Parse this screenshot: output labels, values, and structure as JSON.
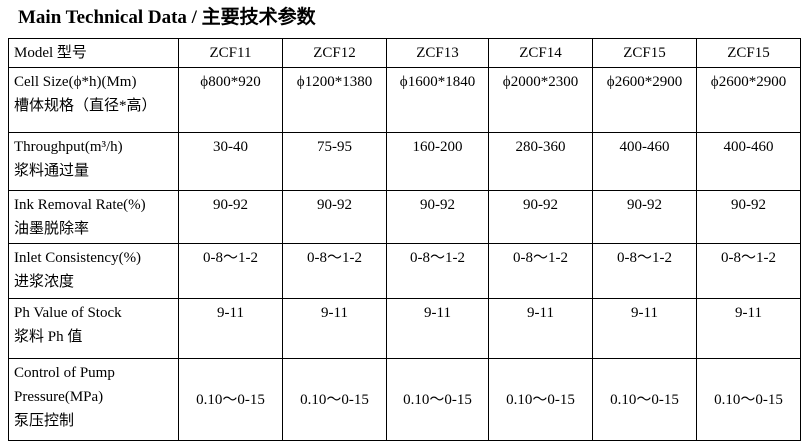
{
  "title": "Main Technical Data /  主要技术参数",
  "table": {
    "header": [
      "Model 型号",
      "ZCF11",
      "ZCF12",
      "ZCF13",
      "ZCF14",
      "ZCF15",
      "ZCF15"
    ],
    "rows": [
      {
        "label": [
          "Cell Size(ϕ*h)(Mm)",
          "槽体规格（直径*高）"
        ],
        "cells": [
          "ϕ800*920",
          "ϕ1200*1380",
          "ϕ1600*1840",
          "ϕ2000*2300",
          "ϕ2600*2900",
          "ϕ2600*2900"
        ]
      },
      {
        "label": [
          "Throughput(m³/h)",
          "浆料通过量"
        ],
        "cells": [
          "30-40",
          "75-95",
          "160-200",
          "280-360",
          "400-460",
          "400-460"
        ]
      },
      {
        "label": [
          "Ink Removal Rate(%)",
          "油墨脱除率"
        ],
        "cells": [
          "90-92",
          "90-92",
          "90-92",
          "90-92",
          "90-92",
          "90-92"
        ]
      },
      {
        "label": [
          "Inlet Consistency(%)",
          "进浆浓度"
        ],
        "cells": [
          "0-8～1-2",
          "0-8～1-2",
          "0-8～1-2",
          "0-8～1-2",
          "0-8～1-2",
          "0-8～1-2"
        ]
      },
      {
        "label": [
          "Ph Value of Stock",
          "浆料 Ph 值"
        ],
        "cells": [
          "9-11",
          "9-11",
          "9-11",
          "9-11",
          "9-11",
          "9-11"
        ]
      },
      {
        "label": [
          "Control of Pump",
          "Pressure(MPa)",
          "泵压控制"
        ],
        "cells": [
          "0.10～0-15",
          "0.10～0-15",
          "0.10～0-15",
          "0.10～0-15",
          "0.10～0-15",
          "0.10～0-15"
        ]
      }
    ]
  }
}
